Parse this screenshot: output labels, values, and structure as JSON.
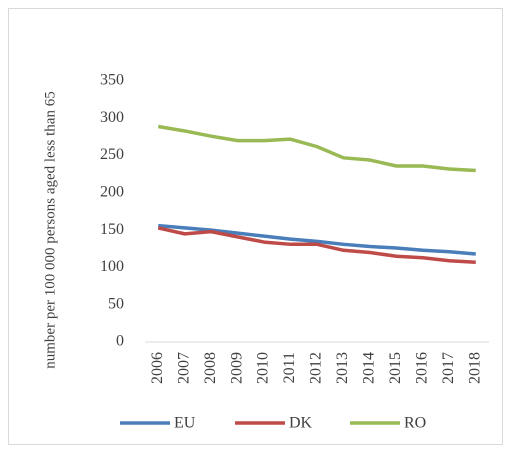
{
  "chart_data": {
    "type": "line",
    "y_label": "number per 100 000 persons aged less than 65",
    "categories": [
      "2006",
      "2007",
      "2008",
      "2009",
      "2010",
      "2011",
      "2012",
      "2013",
      "2014",
      "2015",
      "2016",
      "2017",
      "2018"
    ],
    "series": [
      {
        "name": "EU",
        "color": "#4a7ebb",
        "values": [
          156,
          153,
          150,
          146,
          142,
          138,
          135,
          131,
          128,
          126,
          123,
          121,
          118
        ]
      },
      {
        "name": "DK",
        "color": "#be4b48",
        "values": [
          153,
          145,
          148,
          141,
          134,
          131,
          131,
          123,
          120,
          115,
          113,
          109,
          107
        ]
      },
      {
        "name": "RO",
        "color": "#98b954",
        "values": [
          289,
          283,
          276,
          270,
          270,
          272,
          262,
          247,
          244,
          236,
          236,
          232,
          230
        ]
      }
    ],
    "ylim": [
      0,
      350
    ],
    "yticks": [
      0,
      50,
      100,
      150,
      200,
      250,
      300,
      350
    ],
    "grid": false,
    "legend": "bottom"
  }
}
